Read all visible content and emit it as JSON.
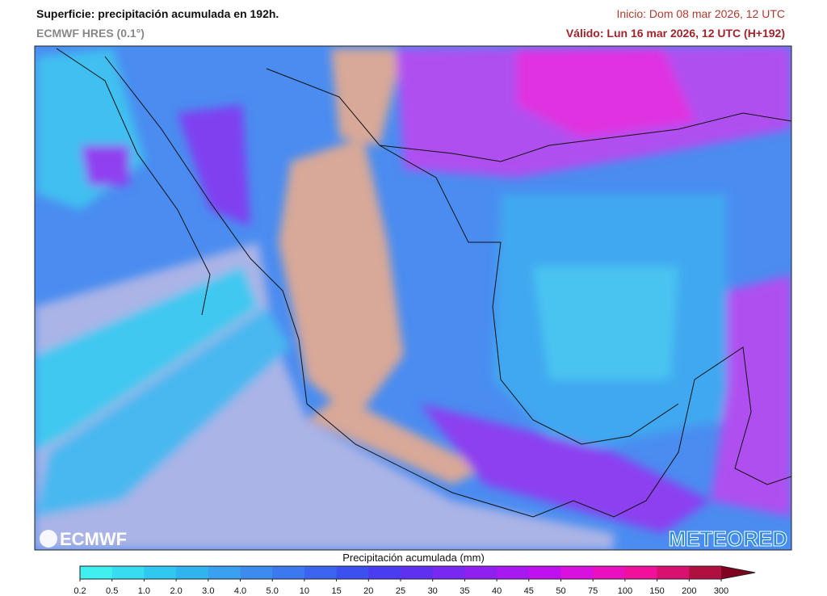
{
  "header": {
    "title": "Superficie: precipitación acumulada en 192h.",
    "subtitle": "ECMWF HRES (0.1°)",
    "init": "Inicio: Dom 08 mar 2026, 12 UTC",
    "valid": "Válido: Lun 16 mar 2026, 12 UTC (H+192)"
  },
  "logos": {
    "left": "ECMWF",
    "right": "METEORED"
  },
  "legend": {
    "label": "Precipitación acumulada (mm)",
    "ticks": [
      "0.2",
      "0.5",
      "1.0",
      "2.0",
      "3.0",
      "4.0",
      "5.0",
      "10",
      "15",
      "20",
      "25",
      "30",
      "35",
      "40",
      "45",
      "50",
      "75",
      "100",
      "150",
      "200",
      "300"
    ],
    "colors": [
      "#40f0f0",
      "#38dcf0",
      "#30c8f0",
      "#30b4f0",
      "#3aa0f0",
      "#3c8cf0",
      "#3c78f0",
      "#3c64f0",
      "#3c50f0",
      "#4a3cf0",
      "#6030f0",
      "#7828f0",
      "#9020f0",
      "#a818f0",
      "#c010f0",
      "#d810e0",
      "#e810c0",
      "#f0109a",
      "#d8106e",
      "#b01040",
      "#800020"
    ]
  }
}
